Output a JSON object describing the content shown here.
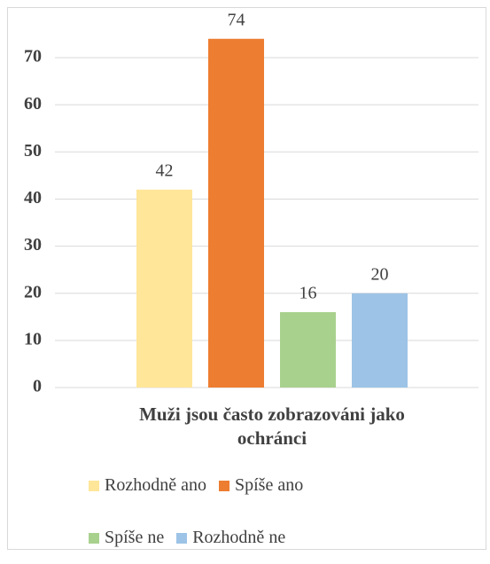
{
  "chart_data": {
    "type": "bar",
    "categories": [
      "Muži jsou často zobrazováni jako ochránci"
    ],
    "series": [
      {
        "name": "Rozhodně ano",
        "color": "#ffe699",
        "values": [
          42
        ]
      },
      {
        "name": "Spíše ano",
        "color": "#ed7d31",
        "values": [
          74
        ]
      },
      {
        "name": "Spíše ne",
        "color": "#a9d18e",
        "values": [
          16
        ]
      },
      {
        "name": "Rozhodně ne",
        "color": "#9dc3e6",
        "values": [
          20
        ]
      }
    ],
    "ylim": [
      0,
      80
    ],
    "yticks": [
      0,
      10,
      20,
      30,
      40,
      50,
      60,
      70
    ],
    "grid": true,
    "legend": "bottom"
  }
}
